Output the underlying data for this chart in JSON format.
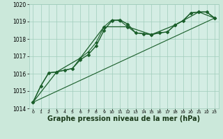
{
  "background_color": "#cbe8da",
  "plot_bg_color": "#d4ede4",
  "grid_color": "#a0ccbb",
  "line_color": "#1a5e2a",
  "xlabel": "Graphe pression niveau de la mer (hPa)",
  "xlabel_fontsize": 7,
  "xlim": [
    -0.5,
    23.5
  ],
  "ylim": [
    1014.0,
    1020.0
  ],
  "xticks": [
    0,
    1,
    2,
    3,
    4,
    5,
    6,
    7,
    8,
    9,
    10,
    11,
    12,
    13,
    14,
    15,
    16,
    17,
    18,
    19,
    20,
    21,
    22,
    23
  ],
  "yticks": [
    1014,
    1015,
    1016,
    1017,
    1018,
    1019,
    1020
  ],
  "series": [
    {
      "x": [
        0,
        1,
        2,
        3,
        4,
        5,
        6,
        7,
        8,
        9,
        10,
        11,
        12,
        13,
        14,
        15,
        16,
        17,
        18,
        19,
        20,
        21,
        22,
        23
      ],
      "y": [
        1014.35,
        1015.3,
        1016.05,
        1016.1,
        1016.2,
        1016.3,
        1016.8,
        1017.1,
        1017.6,
        1018.5,
        1019.05,
        1019.1,
        1018.85,
        1018.35,
        1018.3,
        1018.25,
        1018.35,
        1018.4,
        1018.8,
        1019.05,
        1019.5,
        1019.55,
        1019.55,
        1019.2
      ],
      "marker": "D",
      "markersize": 2.5,
      "linewidth": 1.0
    },
    {
      "x": [
        0,
        1,
        2,
        3,
        4,
        5,
        6,
        7,
        8,
        9,
        10,
        11,
        12,
        13,
        14,
        15,
        16,
        17,
        18,
        19,
        20,
        21,
        22,
        23
      ],
      "y": [
        1014.35,
        1015.3,
        1016.05,
        1016.1,
        1016.2,
        1016.3,
        1016.9,
        1017.25,
        1017.8,
        1018.7,
        1019.1,
        1019.05,
        1018.7,
        1018.35,
        1018.3,
        1018.25,
        1018.35,
        1018.4,
        1018.8,
        1019.05,
        1019.5,
        1019.55,
        1019.55,
        1019.2
      ],
      "marker": "D",
      "markersize": 2.0,
      "linewidth": 0.8
    },
    {
      "x": [
        0,
        3,
        6,
        9,
        12,
        15,
        18,
        21,
        23
      ],
      "y": [
        1014.35,
        1016.1,
        1016.9,
        1018.7,
        1018.7,
        1018.25,
        1018.8,
        1019.55,
        1019.2
      ],
      "marker": "D",
      "markersize": 2.5,
      "linewidth": 0.9
    },
    {
      "x": [
        0,
        23
      ],
      "y": [
        1014.35,
        1019.2
      ],
      "marker": null,
      "markersize": 0,
      "linewidth": 0.8
    }
  ]
}
